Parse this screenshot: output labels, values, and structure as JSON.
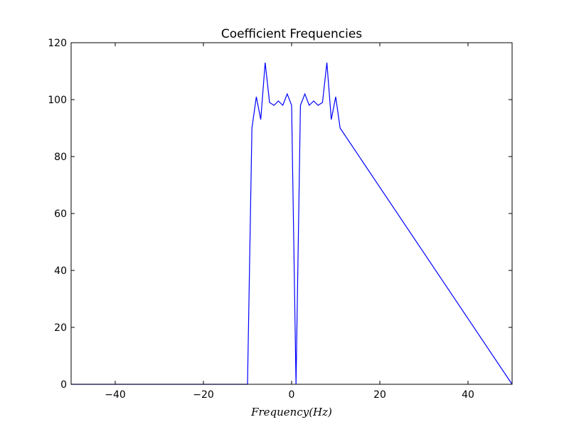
{
  "chart_data": {
    "type": "line",
    "title": "Coefficient Frequencies",
    "xlabel": "Frequency(Hz)",
    "ylabel": "",
    "xlim": [
      -50,
      50
    ],
    "ylim": [
      0,
      120
    ],
    "xticks": [
      -40,
      -20,
      0,
      20,
      40
    ],
    "xtick_labels": [
      "−40",
      "−20",
      "0",
      "20",
      "40"
    ],
    "yticks": [
      0,
      20,
      40,
      60,
      80,
      100,
      120
    ],
    "ytick_labels": [
      "0",
      "20",
      "40",
      "60",
      "80",
      "100",
      "120"
    ],
    "grid": false,
    "series": [
      {
        "color": "#0000ff",
        "x": [
          -50,
          -10,
          -9,
          -8,
          -7,
          -6,
          -5,
          -4,
          -3,
          -2,
          -1,
          0,
          1,
          2,
          3,
          4,
          5,
          6,
          7,
          8,
          9,
          10,
          11,
          50
        ],
        "y": [
          0,
          0,
          90,
          101,
          93,
          113,
          99,
          98,
          99.5,
          98,
          102,
          98,
          0,
          98,
          102,
          98,
          99.5,
          98,
          99,
          113,
          93,
          101,
          90,
          0
        ]
      }
    ]
  }
}
